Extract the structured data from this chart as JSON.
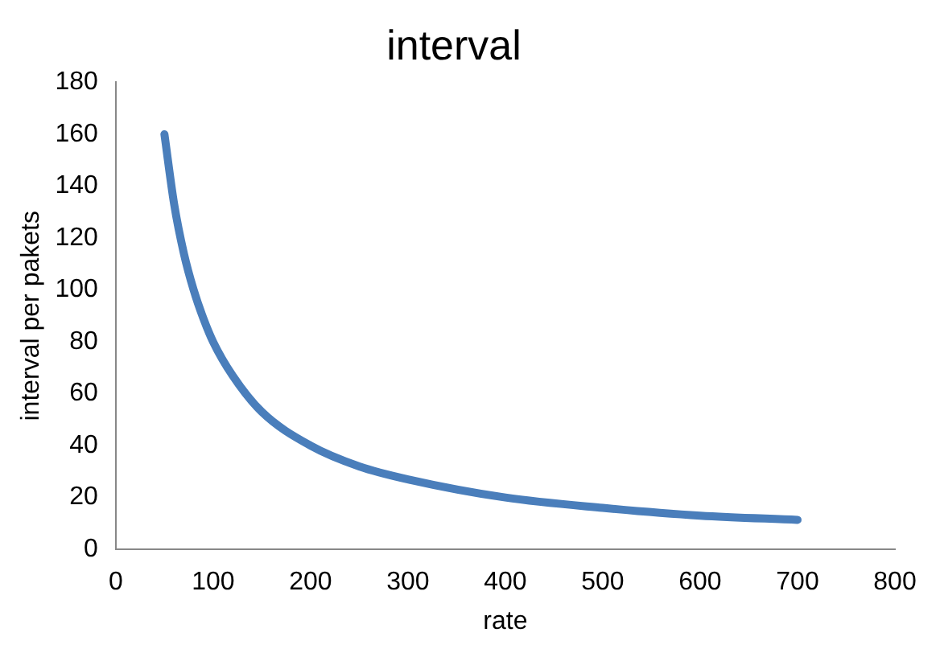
{
  "chart_data": {
    "type": "line",
    "title": "interval",
    "xlabel": "rate",
    "ylabel": "interval per pakets",
    "x": [
      50,
      60,
      70,
      80,
      90,
      100,
      120,
      150,
      200,
      250,
      300,
      400,
      500,
      600,
      700
    ],
    "series": [
      {
        "color": "#4a7ebb",
        "values": [
          160,
          133,
          114,
          100,
          89,
          80,
          67,
          53,
          40,
          32,
          27,
          20,
          16,
          13,
          11.4
        ]
      }
    ],
    "xlim": [
      0,
      800
    ],
    "xticks": [
      0,
      100,
      200,
      300,
      400,
      500,
      600,
      700,
      800
    ],
    "ylim": [
      0,
      180
    ],
    "yticks": [
      0,
      20,
      40,
      60,
      80,
      100,
      120,
      140,
      160,
      180
    ],
    "grid": false,
    "legend": false,
    "marker": "none",
    "line_style": "solid"
  }
}
